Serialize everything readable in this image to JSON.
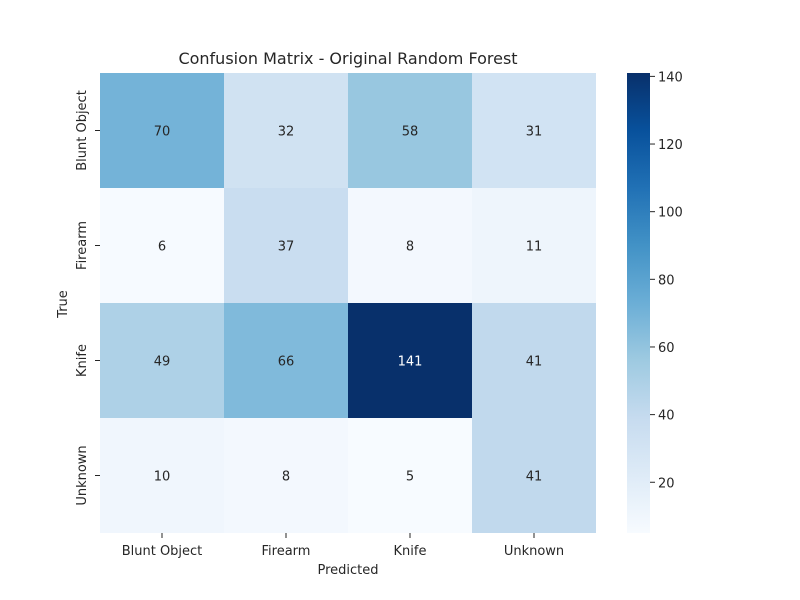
{
  "chart_data": {
    "type": "heatmap",
    "title": "Confusion Matrix - Original Random Forest",
    "xlabel": "Predicted",
    "ylabel": "True",
    "x_categories": [
      "Blunt Object",
      "Firearm",
      "Knife",
      "Unknown"
    ],
    "y_categories": [
      "Blunt Object",
      "Firearm",
      "Knife",
      "Unknown"
    ],
    "values": [
      [
        70,
        32,
        58,
        31
      ],
      [
        6,
        37,
        8,
        11
      ],
      [
        49,
        66,
        141,
        41
      ],
      [
        10,
        8,
        5,
        41
      ]
    ],
    "colorscale": "Blues",
    "colorbar": {
      "range": [
        5,
        141
      ],
      "ticks": [
        20,
        40,
        60,
        80,
        100,
        120,
        140
      ]
    },
    "annotations": true
  }
}
